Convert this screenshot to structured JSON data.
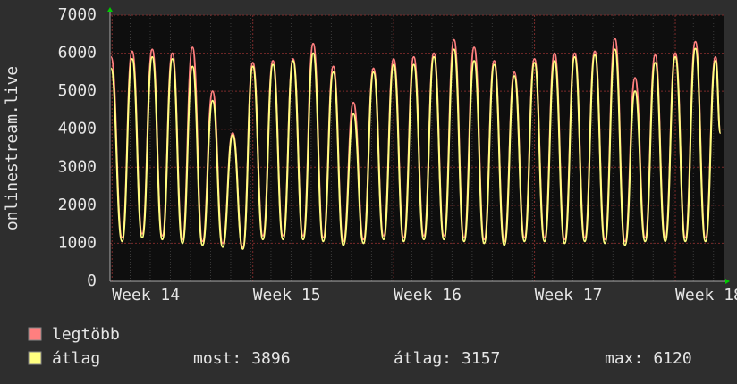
{
  "chart_data": {
    "type": "line",
    "ylabel": "onlinestream.live",
    "x": [
      0.05,
      0.6,
      1.1,
      1.6,
      2.1,
      2.6,
      3.1,
      3.6,
      4.1,
      4.6,
      5.1,
      5.6,
      6.1,
      6.6,
      7.1,
      7.6,
      8.1,
      8.6,
      9.1,
      9.6,
      10.1,
      10.6,
      11.1,
      11.6,
      12.1,
      12.6,
      13.1,
      13.6,
      14.1,
      14.6,
      15.1,
      15.6,
      16.1,
      16.6,
      17.1,
      17.6,
      18.1,
      18.6,
      19.1,
      19.6,
      20.1,
      20.6,
      21.1,
      21.6,
      22.1,
      22.6,
      23.1,
      23.6,
      24.1,
      24.6,
      25.1,
      25.6,
      26.1,
      26.6,
      27.1,
      27.6,
      28.1,
      28.6,
      29.1,
      29.6,
      30.1,
      30.35
    ],
    "series": [
      {
        "name": "legtöbb",
        "color": "#ff7f7f",
        "values": [
          5900,
          1150,
          6050,
          1250,
          6100,
          1200,
          6000,
          1100,
          6150,
          1050,
          5000,
          1000,
          3900,
          900,
          5750,
          1200,
          5800,
          1200,
          5850,
          1200,
          6250,
          1150,
          5650,
          1050,
          4700,
          1100,
          5600,
          1200,
          5850,
          1150,
          5900,
          1200,
          6000,
          1200,
          6350,
          1150,
          6150,
          1100,
          5800,
          1050,
          5500,
          1150,
          5850,
          1150,
          6000,
          1100,
          6000,
          1150,
          6050,
          1100,
          6380,
          1050,
          5350,
          1150,
          5950,
          1150,
          6000,
          1150,
          6300,
          1150,
          5900,
          3896
        ]
      },
      {
        "name": "átlag",
        "color": "#ffff80",
        "values": [
          5600,
          1050,
          5850,
          1150,
          5900,
          1100,
          5850,
          1000,
          5650,
          950,
          4750,
          900,
          3850,
          850,
          5650,
          1100,
          5700,
          1100,
          5800,
          1100,
          6000,
          1050,
          5500,
          950,
          4400,
          1000,
          5500,
          1100,
          5700,
          1050,
          5700,
          1100,
          5900,
          1100,
          6100,
          1050,
          5800,
          1000,
          5700,
          950,
          5400,
          1050,
          5750,
          1050,
          5800,
          1000,
          5900,
          1050,
          5950,
          1000,
          6100,
          950,
          5000,
          1050,
          5750,
          1050,
          5900,
          1050,
          6120,
          1050,
          5800,
          3896
        ]
      }
    ],
    "xlim": [
      0,
      30.5
    ],
    "xticks": [
      {
        "value": 0.1,
        "label": "Week 14"
      },
      {
        "value": 7.1,
        "label": "Week 15"
      },
      {
        "value": 14.1,
        "label": "Week 16"
      },
      {
        "value": 21.1,
        "label": "Week 17"
      },
      {
        "value": 28.1,
        "label": "Week 18"
      }
    ],
    "ylim": [
      0,
      7000
    ],
    "yticks": [
      0,
      1000,
      2000,
      3000,
      4000,
      5000,
      6000,
      7000
    ],
    "grid": true,
    "stats": [
      {
        "label": "most:",
        "value": 3896
      },
      {
        "label": "átlag:",
        "value": 3157
      },
      {
        "label": "max:",
        "value": 6120
      }
    ]
  }
}
